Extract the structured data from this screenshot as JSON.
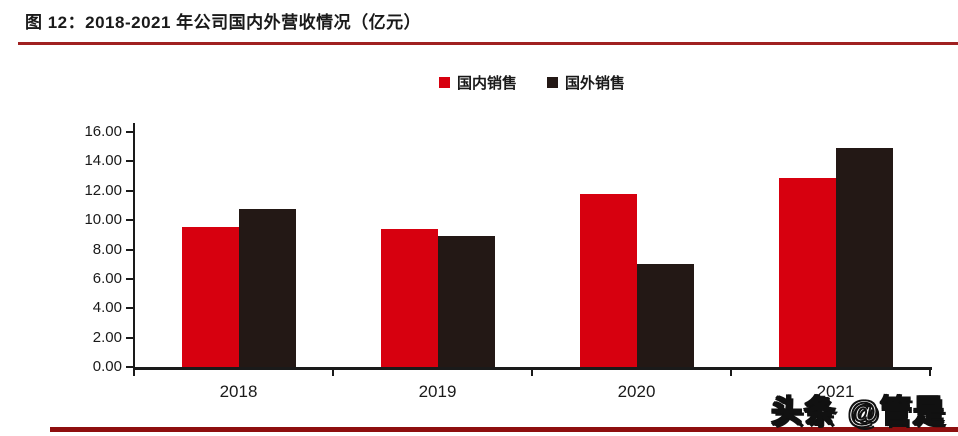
{
  "header": {
    "title": "图 12：2018-2021 年公司国内外营收情况（亿元）"
  },
  "chart_data": {
    "type": "bar",
    "title": "2018-2021 年公司国内外营收情况（亿元）",
    "categories": [
      "2018",
      "2019",
      "2020",
      "2021"
    ],
    "series": [
      {
        "name": "国内销售",
        "color": "#d7000f",
        "values": [
          9.55,
          9.4,
          11.8,
          12.9
        ]
      },
      {
        "name": "国外销售",
        "color": "#231815",
        "values": [
          10.75,
          8.95,
          7.0,
          14.9
        ]
      }
    ],
    "xlabel": "",
    "ylabel": "",
    "ylim": [
      0,
      16
    ],
    "ytick_step": 2,
    "ytick_labels": [
      "0.00",
      "2.00",
      "4.00",
      "6.00",
      "8.00",
      "10.00",
      "12.00",
      "14.00",
      "16.00"
    ],
    "legend_position": "top-center",
    "grid": false
  },
  "watermark": {
    "text": "头条 @管是"
  },
  "colors": {
    "title_rule": "#a02020",
    "bottom_rule": "#8e0f0f",
    "axis": "#1a1a1a",
    "domestic_series": "#d7000f",
    "foreign_series": "#231815"
  }
}
